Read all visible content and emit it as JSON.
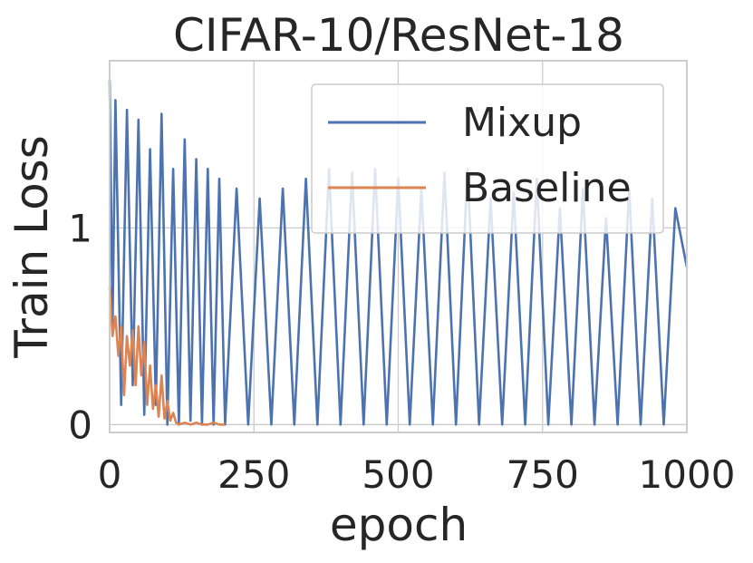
{
  "chart_data": {
    "type": "line",
    "title": "CIFAR-10/ResNet-18",
    "xlabel": "epoch",
    "ylabel": "Train Loss",
    "xlim": [
      0,
      1000
    ],
    "ylim": [
      -0.04,
      1.85
    ],
    "xticks": [
      0,
      250,
      500,
      750,
      1000
    ],
    "xtick_labels": [
      "0",
      "250",
      "500",
      "750",
      "1000"
    ],
    "yticks": [
      0,
      1
    ],
    "ytick_labels": [
      "0",
      "1"
    ],
    "grid": true,
    "legend_position": "top-right",
    "series": [
      {
        "name": "Mixup",
        "color": "#4c72b0",
        "x": [
          0,
          5,
          10,
          20,
          30,
          40,
          50,
          60,
          70,
          80,
          90,
          100,
          110,
          120,
          130,
          140,
          150,
          160,
          170,
          180,
          190,
          200,
          220,
          240,
          260,
          280,
          300,
          320,
          340,
          360,
          380,
          400,
          420,
          440,
          460,
          480,
          500,
          520,
          540,
          560,
          580,
          600,
          620,
          640,
          660,
          680,
          700,
          720,
          740,
          760,
          780,
          800,
          820,
          840,
          860,
          880,
          900,
          920,
          940,
          960,
          980,
          1000
        ],
        "y": [
          1.75,
          0.5,
          1.65,
          0.1,
          1.6,
          0.2,
          1.55,
          0.05,
          1.4,
          0.1,
          1.58,
          0.0,
          1.3,
          0.0,
          1.45,
          0.02,
          1.35,
          0.0,
          1.3,
          0.0,
          1.25,
          0.0,
          1.2,
          0.0,
          1.15,
          0.0,
          1.2,
          0.0,
          1.25,
          0.0,
          1.3,
          0.0,
          1.28,
          0.0,
          1.3,
          0.0,
          1.25,
          0.0,
          1.2,
          0.0,
          1.28,
          0.0,
          1.3,
          0.0,
          1.15,
          0.0,
          1.18,
          0.0,
          1.25,
          0.0,
          1.1,
          0.0,
          1.2,
          0.0,
          1.05,
          0.0,
          1.2,
          0.0,
          1.15,
          0.0,
          1.1,
          0.8
        ]
      },
      {
        "name": "Baseline",
        "color": "#dd8452",
        "x": [
          0,
          5,
          10,
          15,
          20,
          25,
          30,
          35,
          40,
          45,
          50,
          55,
          60,
          65,
          70,
          75,
          80,
          85,
          90,
          95,
          100,
          105,
          110,
          115,
          120,
          130,
          140,
          150,
          160,
          170,
          180,
          190,
          200
        ],
        "y": [
          0.7,
          0.45,
          0.55,
          0.35,
          0.5,
          0.15,
          0.45,
          0.3,
          0.48,
          0.2,
          0.5,
          0.25,
          0.42,
          0.1,
          0.3,
          0.08,
          0.2,
          0.04,
          0.25,
          0.03,
          0.12,
          0.02,
          0.06,
          0.01,
          0.0,
          0.01,
          0.0,
          0.01,
          0.0,
          0.0,
          0.01,
          0.0,
          0.0
        ]
      }
    ]
  }
}
